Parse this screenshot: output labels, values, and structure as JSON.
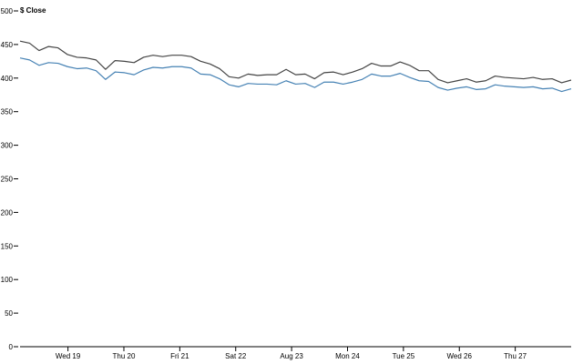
{
  "chart_data": {
    "type": "line",
    "ylabel": "$ Close",
    "ylim": [
      0,
      500
    ],
    "yticks": [
      0,
      50,
      100,
      150,
      200,
      250,
      300,
      350,
      400,
      450,
      500
    ],
    "xlim": [
      0,
      69
    ],
    "xticks": [
      {
        "x": 6,
        "label": "Wed 19"
      },
      {
        "x": 13,
        "label": "Thu 20"
      },
      {
        "x": 20,
        "label": "Fri 21"
      },
      {
        "x": 27,
        "label": "Sat 22"
      },
      {
        "x": 34,
        "label": "Aug 23"
      },
      {
        "x": 41,
        "label": "Mon 24"
      },
      {
        "x": 48,
        "label": "Tue 25"
      },
      {
        "x": 55,
        "label": "Wed 26"
      },
      {
        "x": 62,
        "label": "Thu 27"
      }
    ],
    "series": [
      {
        "color": "#444444",
        "values": [
          455,
          452,
          441,
          447,
          445,
          435,
          431,
          430,
          427,
          413,
          426,
          425,
          423,
          431,
          434,
          432,
          434,
          434,
          432,
          425,
          421,
          414,
          402,
          400,
          406,
          404,
          405,
          405,
          413,
          405,
          406,
          399,
          408,
          409,
          405,
          409,
          414,
          422,
          418,
          418,
          424,
          419,
          411,
          411,
          398,
          393,
          396,
          399,
          394,
          396,
          403,
          401,
          400,
          399,
          401,
          398,
          399,
          393,
          397
        ]
      },
      {
        "color": "#4682b4",
        "values": [
          430,
          427,
          419,
          423,
          422,
          417,
          414,
          415,
          411,
          398,
          409,
          408,
          405,
          412,
          416,
          415,
          417,
          417,
          415,
          406,
          405,
          399,
          390,
          387,
          392,
          391,
          391,
          390,
          396,
          391,
          392,
          386,
          394,
          394,
          391,
          394,
          398,
          406,
          403,
          403,
          407,
          401,
          396,
          395,
          386,
          382,
          385,
          387,
          383,
          384,
          390,
          388,
          387,
          386,
          387,
          384,
          385,
          380,
          384
        ]
      }
    ]
  }
}
